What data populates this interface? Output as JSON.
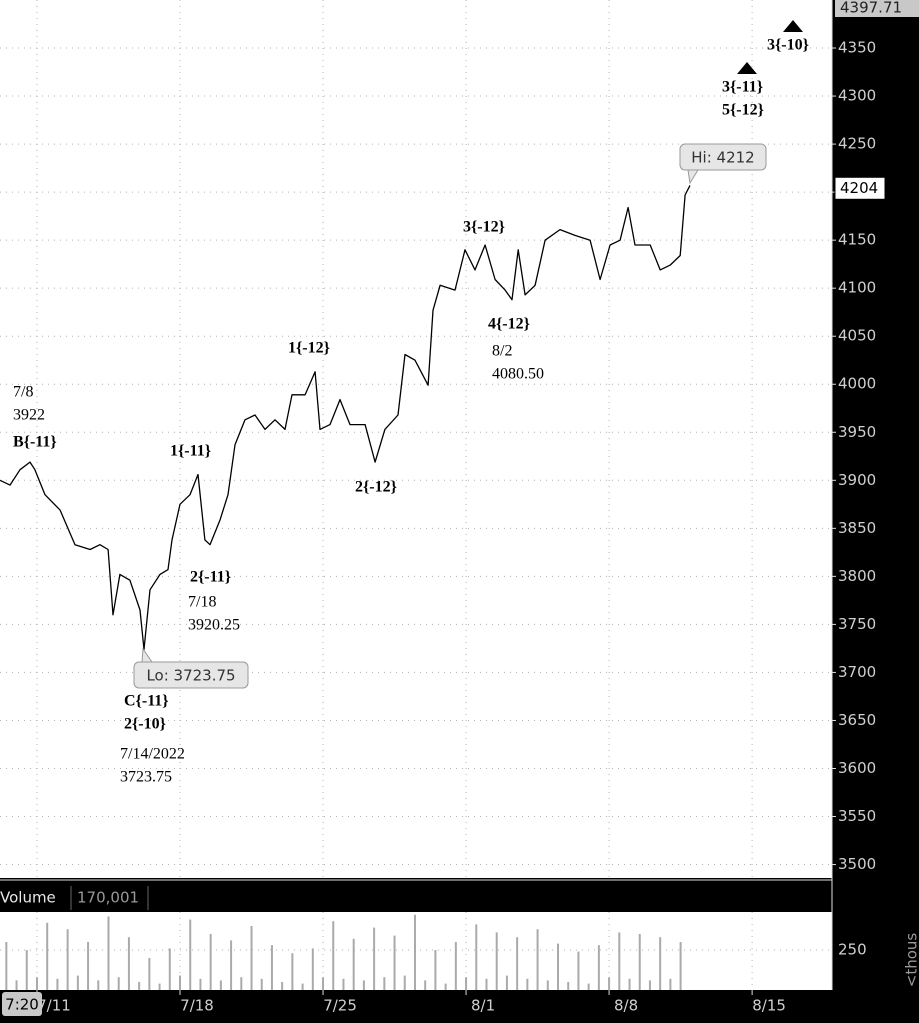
{
  "chart_data": {
    "type": "line",
    "xlim": [
      9.19,
      49.91
    ],
    "ylim": [
      3486,
      4400
    ],
    "xticks": [
      {
        "value": 11,
        "label": "7/11"
      },
      {
        "value": 18,
        "label": "7/18"
      },
      {
        "value": 25,
        "label": "7/25"
      },
      {
        "value": 32,
        "label": "8/1"
      },
      {
        "value": 39,
        "label": "8/8"
      },
      {
        "value": 46,
        "label": "8/15"
      }
    ],
    "yticks": [
      3500,
      3550,
      3600,
      3650,
      3700,
      3750,
      3800,
      3850,
      3900,
      3950,
      4000,
      4050,
      4100,
      4150,
      4200,
      4250,
      4300,
      4350
    ],
    "grid": true,
    "axis_top_value": 4397.71,
    "last_price": 4204,
    "time_label": "7:20",
    "series": [
      {
        "color": "#000000",
        "x": [
          9.19,
          9.68,
          10.17,
          10.66,
          10.9,
          11.39,
          12.13,
          12.86,
          13.6,
          14.08,
          14.48,
          14.72,
          15.06,
          15.55,
          16.04,
          16.24,
          16.53,
          17.02,
          17.41,
          17.61,
          18.0,
          18.49,
          18.88,
          19.22,
          19.47,
          19.96,
          20.35,
          20.69,
          21.18,
          21.67,
          22.16,
          22.65,
          23.14,
          23.48,
          24.12,
          24.61,
          24.85,
          25.34,
          25.83,
          26.32,
          27.06,
          27.55,
          28.03,
          28.67,
          29.01,
          29.5,
          30.14,
          30.38,
          30.73,
          31.46,
          31.95,
          32.44,
          32.93,
          33.42,
          33.91,
          34.25,
          34.55,
          34.89,
          35.38,
          35.87,
          36.6,
          37.33,
          38.07,
          38.56,
          39.05,
          39.54,
          39.93,
          40.27,
          41.01,
          41.5,
          41.99,
          42.48,
          42.72,
          42.96
        ],
        "values": [
          3900,
          3895,
          3911,
          3919,
          3911,
          3885,
          3869,
          3833,
          3828,
          3833,
          3828,
          3760,
          3802,
          3796,
          3765,
          3724,
          3786,
          3802,
          3807,
          3838,
          3875,
          3885,
          3906,
          3838,
          3833,
          3859,
          3885,
          3937,
          3963,
          3968,
          3953,
          3963,
          3953,
          3989,
          3989,
          4013,
          3953,
          3958,
          3984,
          3958,
          3958,
          3919,
          3953,
          3968,
          4031,
          4025,
          3999,
          4077,
          4103,
          4098,
          4140,
          4119,
          4145,
          4109,
          4098,
          4088,
          4140,
          4093,
          4103,
          4150,
          4161,
          4155,
          4150,
          4109,
          4145,
          4150,
          4184,
          4145,
          4145,
          4119,
          4124,
          4134,
          4197,
          4207
        ]
      }
    ],
    "annotations": [
      {
        "lines": [
          "7/8",
          "3922"
        ],
        "bold": false
      },
      {
        "lines": [
          "B{-11}"
        ],
        "bold": true
      },
      {
        "lines": [
          "1{-11}"
        ],
        "bold": true
      },
      {
        "lines": [
          "2{-11}"
        ],
        "bold": true
      },
      {
        "lines": [
          "7/18",
          "3920.25"
        ],
        "bold": false
      },
      {
        "lines": [
          "1{-12}"
        ],
        "bold": true
      },
      {
        "lines": [
          "2{-12}"
        ],
        "bold": true
      },
      {
        "lines": [
          "3{-12}"
        ],
        "bold": true
      },
      {
        "lines": [
          "4{-12}"
        ],
        "bold": true
      },
      {
        "lines": [
          "8/2",
          "4080.50"
        ],
        "bold": false
      },
      {
        "lines": [
          "C{-11}",
          "2{-10}"
        ],
        "bold": true
      },
      {
        "lines": [
          "7/14/2022",
          "3723.75"
        ],
        "bold": false
      },
      {
        "lines": [
          "3{-11}",
          "5{-12}"
        ],
        "bold": true
      },
      {
        "lines": [
          "3{-10}"
        ],
        "bold": true
      }
    ],
    "callouts": [
      "Lo: 3723.75",
      "Hi: 4212"
    ],
    "volume": {
      "title": "Volume",
      "reading": "170,001",
      "unit": "<thous",
      "color": "#aaaaaa",
      "ylim": [
        0,
        487.5
      ],
      "yticks": [
        250
      ],
      "x": [
        9.5,
        10,
        10.5,
        11,
        11.5,
        12,
        12.5,
        13,
        13.5,
        14,
        14.5,
        15,
        15.5,
        16,
        16.5,
        17,
        17.5,
        18,
        18.5,
        19,
        19.5,
        20,
        20.5,
        21,
        21.5,
        22,
        22.5,
        23,
        23.5,
        24,
        24.5,
        25,
        25.5,
        26,
        26.5,
        27,
        27.5,
        28,
        28.5,
        29,
        29.5,
        30,
        30.5,
        31,
        31.5,
        32,
        32.5,
        33,
        33.5,
        34,
        34.5,
        35,
        35.5,
        36,
        36.5,
        37,
        37.5,
        38,
        38.5,
        39,
        39.5,
        40,
        40.5,
        41,
        41.5,
        42,
        42.5
      ],
      "values": [
        300,
        60,
        250,
        80,
        420,
        70,
        380,
        90,
        300,
        60,
        460,
        80,
        330,
        50,
        200,
        40,
        260,
        90,
        440,
        70,
        350,
        60,
        310,
        80,
        400,
        70,
        280,
        50,
        230,
        40,
        260,
        80,
        430,
        70,
        320,
        60,
        390,
        80,
        340,
        90,
        470,
        60,
        250,
        40,
        300,
        80,
        410,
        70,
        360,
        90,
        330,
        70,
        380,
        60,
        290,
        50,
        240,
        40,
        280,
        80,
        360,
        70,
        350,
        60,
        330,
        70,
        300
      ]
    }
  }
}
